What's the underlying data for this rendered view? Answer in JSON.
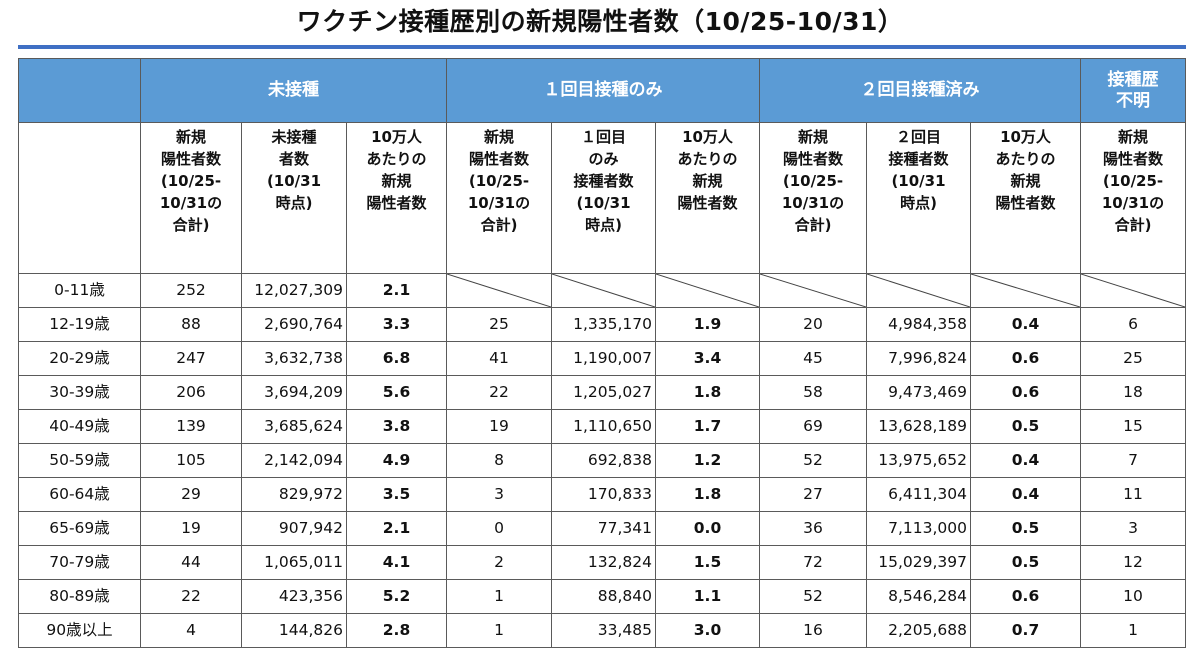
{
  "title": "ワクチン接種歴別の新規陽性者数（10/25-10/31）",
  "groups": {
    "unvaccinated": "未接種",
    "dose1": "１回目接種のみ",
    "dose2": "２回目接種済み",
    "unknown": "接種歴\n不明"
  },
  "subheaders": {
    "new_cases": "新規\n陽性者数\n(10/25-\n10/31の\n合計)",
    "unvaccinated_pop": "未接種\n者数\n(10/31\n時点)",
    "rate": "10万人\nあたりの\n新規\n陽性者数",
    "dose1_pop": "１回目\nのみ\n接種者数\n(10/31\n時点)",
    "dose2_pop": "２回目\n接種者数\n(10/31\n時点)"
  },
  "rows": [
    {
      "age": "0-11歳",
      "u_cases": "252",
      "u_pop": "12,027,309",
      "u_rate": "2.1",
      "d1_cases": "",
      "d1_pop": "",
      "d1_rate": "",
      "d2_cases": "",
      "d2_pop": "",
      "d2_rate": "",
      "unknown": ""
    },
    {
      "age": "12-19歳",
      "u_cases": "88",
      "u_pop": "2,690,764",
      "u_rate": "3.3",
      "d1_cases": "25",
      "d1_pop": "1,335,170",
      "d1_rate": "1.9",
      "d2_cases": "20",
      "d2_pop": "4,984,358",
      "d2_rate": "0.4",
      "unknown": "6"
    },
    {
      "age": "20-29歳",
      "u_cases": "247",
      "u_pop": "3,632,738",
      "u_rate": "6.8",
      "d1_cases": "41",
      "d1_pop": "1,190,007",
      "d1_rate": "3.4",
      "d2_cases": "45",
      "d2_pop": "7,996,824",
      "d2_rate": "0.6",
      "unknown": "25"
    },
    {
      "age": "30-39歳",
      "u_cases": "206",
      "u_pop": "3,694,209",
      "u_rate": "5.6",
      "d1_cases": "22",
      "d1_pop": "1,205,027",
      "d1_rate": "1.8",
      "d2_cases": "58",
      "d2_pop": "9,473,469",
      "d2_rate": "0.6",
      "unknown": "18"
    },
    {
      "age": "40-49歳",
      "u_cases": "139",
      "u_pop": "3,685,624",
      "u_rate": "3.8",
      "d1_cases": "19",
      "d1_pop": "1,110,650",
      "d1_rate": "1.7",
      "d2_cases": "69",
      "d2_pop": "13,628,189",
      "d2_rate": "0.5",
      "unknown": "15"
    },
    {
      "age": "50-59歳",
      "u_cases": "105",
      "u_pop": "2,142,094",
      "u_rate": "4.9",
      "d1_cases": "8",
      "d1_pop": "692,838",
      "d1_rate": "1.2",
      "d2_cases": "52",
      "d2_pop": "13,975,652",
      "d2_rate": "0.4",
      "unknown": "7"
    },
    {
      "age": "60-64歳",
      "u_cases": "29",
      "u_pop": "829,972",
      "u_rate": "3.5",
      "d1_cases": "3",
      "d1_pop": "170,833",
      "d1_rate": "1.8",
      "d2_cases": "27",
      "d2_pop": "6,411,304",
      "d2_rate": "0.4",
      "unknown": "11"
    },
    {
      "age": "65-69歳",
      "u_cases": "19",
      "u_pop": "907,942",
      "u_rate": "2.1",
      "d1_cases": "0",
      "d1_pop": "77,341",
      "d1_rate": "0.0",
      "d2_cases": "36",
      "d2_pop": "7,113,000",
      "d2_rate": "0.5",
      "unknown": "3"
    },
    {
      "age": "70-79歳",
      "u_cases": "44",
      "u_pop": "1,065,011",
      "u_rate": "4.1",
      "d1_cases": "2",
      "d1_pop": "132,824",
      "d1_rate": "1.5",
      "d2_cases": "72",
      "d2_pop": "15,029,397",
      "d2_rate": "0.5",
      "unknown": "12"
    },
    {
      "age": "80-89歳",
      "u_cases": "22",
      "u_pop": "423,356",
      "u_rate": "5.2",
      "d1_cases": "1",
      "d1_pop": "88,840",
      "d1_rate": "1.1",
      "d2_cases": "52",
      "d2_pop": "8,546,284",
      "d2_rate": "0.6",
      "unknown": "10"
    },
    {
      "age": "90歳以上",
      "u_cases": "4",
      "u_pop": "144,826",
      "u_rate": "2.8",
      "d1_cases": "1",
      "d1_pop": "33,485",
      "d1_rate": "3.0",
      "d2_cases": "16",
      "d2_pop": "2,205,688",
      "d2_rate": "0.7",
      "unknown": "1"
    }
  ],
  "colors": {
    "header_bg": "#5b9bd5",
    "title_rule": "#3f6fc4"
  }
}
